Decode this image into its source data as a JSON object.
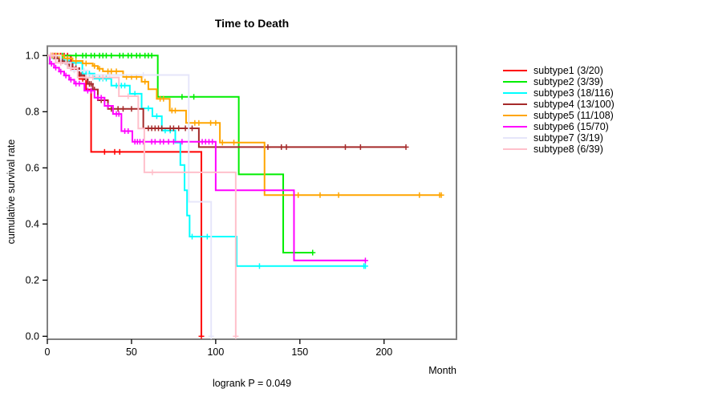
{
  "title": "Time to Death",
  "xlabel": "Month",
  "ylabel": "cumulative survival rate",
  "footnote": "logrank P = 0.049",
  "axis_color": "#808080",
  "text_color": "#000000",
  "chart_data": {
    "type": "line",
    "subtype": "kaplan-meier-step",
    "title": "Time to Death",
    "xlabel": "Month",
    "ylabel": "cumulative survival rate",
    "annotation": "logrank P = 0.049",
    "xlim": [
      0,
      243
    ],
    "ylim": [
      0.0,
      1.0
    ],
    "x_ticks": [
      0,
      50,
      100,
      150,
      200
    ],
    "y_ticks": [
      0.0,
      0.2,
      0.4,
      0.6,
      0.8,
      1.0
    ],
    "grid": false,
    "legend_position": "right-outside",
    "series": [
      {
        "name": "subtype1 (3/20)",
        "color": "#FF0000",
        "points": [
          [
            0,
            1
          ],
          [
            14,
            0.95
          ],
          [
            19,
            0.917
          ],
          [
            23,
            0.879
          ],
          [
            26,
            0.657
          ],
          [
            91.5,
            0
          ]
        ],
        "end": 91.5,
        "censors": [
          [
            2,
            1
          ],
          [
            4,
            1
          ],
          [
            6,
            1
          ],
          [
            8,
            1
          ],
          [
            10,
            1
          ],
          [
            12,
            1
          ],
          [
            16,
            0.95
          ],
          [
            21,
            0.917
          ],
          [
            34,
            0.657
          ],
          [
            40,
            0.657
          ],
          [
            43,
            0.657
          ],
          [
            91.5,
            0
          ]
        ]
      },
      {
        "name": "subtype2 (3/39)",
        "color": "#00EE00",
        "points": [
          [
            0,
            1
          ],
          [
            65.6,
            0.853
          ],
          [
            113.7,
            0.577
          ],
          [
            140.1,
            0.298
          ]
        ],
        "end": 157.6,
        "censors": [
          [
            5,
            1
          ],
          [
            9,
            1
          ],
          [
            17,
            1
          ],
          [
            21,
            1
          ],
          [
            23,
            1
          ],
          [
            26,
            1
          ],
          [
            28,
            1
          ],
          [
            31,
            1
          ],
          [
            33,
            1
          ],
          [
            35,
            1
          ],
          [
            38,
            1
          ],
          [
            43,
            1
          ],
          [
            45,
            1
          ],
          [
            48,
            1
          ],
          [
            50,
            1
          ],
          [
            53,
            1
          ],
          [
            55,
            1
          ],
          [
            58,
            1
          ],
          [
            60,
            1
          ],
          [
            62,
            1
          ],
          [
            80,
            0.853
          ],
          [
            87,
            0.853
          ],
          [
            157.6,
            0.298
          ]
        ]
      },
      {
        "name": "subtype3 (18/116)",
        "color": "#00FFFF",
        "points": [
          [
            0,
            1
          ],
          [
            3,
            0.991
          ],
          [
            8,
            0.983
          ],
          [
            13,
            0.974
          ],
          [
            20.8,
            0.936
          ],
          [
            28,
            0.918
          ],
          [
            38,
            0.893
          ],
          [
            49,
            0.864
          ],
          [
            56,
            0.812
          ],
          [
            62.4,
            0.784
          ],
          [
            68,
            0.733
          ],
          [
            76,
            0.69
          ],
          [
            79,
            0.61
          ],
          [
            81.5,
            0.52
          ],
          [
            83,
            0.43
          ],
          [
            84.5,
            0.355
          ],
          [
            112.4,
            0.25
          ]
        ],
        "end": 188.9,
        "censors": [
          [
            5,
            0.991
          ],
          [
            10,
            0.983
          ],
          [
            15,
            0.974
          ],
          [
            17,
            0.974
          ],
          [
            23,
            0.936
          ],
          [
            25,
            0.936
          ],
          [
            31,
            0.918
          ],
          [
            33,
            0.918
          ],
          [
            35,
            0.918
          ],
          [
            41,
            0.893
          ],
          [
            44,
            0.893
          ],
          [
            46,
            0.893
          ],
          [
            52,
            0.864
          ],
          [
            60,
            0.812
          ],
          [
            65,
            0.784
          ],
          [
            70,
            0.733
          ],
          [
            73,
            0.733
          ],
          [
            86,
            0.355
          ],
          [
            95,
            0.355
          ],
          [
            126,
            0.25
          ],
          [
            188,
            0.25
          ],
          [
            188.9,
            0.25
          ]
        ]
      },
      {
        "name": "subtype4 (13/100)",
        "color": "#A52A2A",
        "points": [
          [
            0,
            1
          ],
          [
            4,
            0.99
          ],
          [
            7,
            0.98
          ],
          [
            11,
            0.97
          ],
          [
            15,
            0.955
          ],
          [
            19,
            0.93
          ],
          [
            22,
            0.915
          ],
          [
            24,
            0.899
          ],
          [
            27,
            0.879
          ],
          [
            30,
            0.841
          ],
          [
            36,
            0.81
          ],
          [
            57,
            0.741
          ],
          [
            90,
            0.674
          ]
        ],
        "end": 213,
        "censors": [
          [
            3,
            1
          ],
          [
            5,
            0.99
          ],
          [
            8,
            0.98
          ],
          [
            9,
            0.98
          ],
          [
            12,
            0.97
          ],
          [
            13,
            0.97
          ],
          [
            17,
            0.955
          ],
          [
            20,
            0.93
          ],
          [
            25,
            0.899
          ],
          [
            26,
            0.899
          ],
          [
            28,
            0.879
          ],
          [
            32,
            0.841
          ],
          [
            34,
            0.841
          ],
          [
            38,
            0.81
          ],
          [
            42,
            0.81
          ],
          [
            45,
            0.81
          ],
          [
            50,
            0.81
          ],
          [
            60,
            0.741
          ],
          [
            62,
            0.741
          ],
          [
            64,
            0.741
          ],
          [
            66,
            0.741
          ],
          [
            68,
            0.741
          ],
          [
            73,
            0.741
          ],
          [
            75,
            0.741
          ],
          [
            78,
            0.741
          ],
          [
            82,
            0.741
          ],
          [
            86,
            0.741
          ],
          [
            131,
            0.674
          ],
          [
            139,
            0.674
          ],
          [
            142,
            0.674
          ],
          [
            177,
            0.674
          ],
          [
            186,
            0.674
          ],
          [
            213,
            0.674
          ]
        ]
      },
      {
        "name": "subtype5 (11/108)",
        "color": "#FFA500",
        "points": [
          [
            0,
            1
          ],
          [
            10,
            0.99
          ],
          [
            15,
            0.981
          ],
          [
            21,
            0.972
          ],
          [
            27,
            0.963
          ],
          [
            30,
            0.953
          ],
          [
            33,
            0.944
          ],
          [
            45,
            0.924
          ],
          [
            56,
            0.907
          ],
          [
            60,
            0.88
          ],
          [
            65,
            0.846
          ],
          [
            72.7,
            0.804
          ],
          [
            82.4,
            0.76
          ],
          [
            102.5,
            0.69
          ],
          [
            129,
            0.503
          ]
        ],
        "end": 234,
        "censors": [
          [
            3,
            1
          ],
          [
            5,
            1
          ],
          [
            7,
            1
          ],
          [
            12,
            0.99
          ],
          [
            17,
            0.981
          ],
          [
            23,
            0.972
          ],
          [
            28,
            0.963
          ],
          [
            31,
            0.953
          ],
          [
            36,
            0.944
          ],
          [
            38,
            0.944
          ],
          [
            41,
            0.944
          ],
          [
            47,
            0.924
          ],
          [
            50,
            0.924
          ],
          [
            53,
            0.924
          ],
          [
            58,
            0.907
          ],
          [
            67,
            0.846
          ],
          [
            69,
            0.846
          ],
          [
            74,
            0.804
          ],
          [
            76,
            0.804
          ],
          [
            87.6,
            0.76
          ],
          [
            90,
            0.76
          ],
          [
            97,
            0.76
          ],
          [
            100,
            0.76
          ],
          [
            104,
            0.69
          ],
          [
            110.8,
            0.69
          ],
          [
            149,
            0.503
          ],
          [
            162,
            0.503
          ],
          [
            173,
            0.503
          ],
          [
            221,
            0.503
          ],
          [
            233,
            0.503
          ],
          [
            234,
            0.503
          ]
        ]
      },
      {
        "name": "subtype6 (15/70)",
        "color": "#FF00FF",
        "points": [
          [
            0,
            1
          ],
          [
            1.5,
            0.971
          ],
          [
            4,
            0.957
          ],
          [
            7,
            0.943
          ],
          [
            10,
            0.929
          ],
          [
            13,
            0.914
          ],
          [
            16,
            0.9
          ],
          [
            22,
            0.875
          ],
          [
            28,
            0.85
          ],
          [
            34,
            0.821
          ],
          [
            39,
            0.792
          ],
          [
            44,
            0.731
          ],
          [
            50.5,
            0.693
          ],
          [
            100,
            0.52
          ],
          [
            146.5,
            0.27
          ]
        ],
        "end": 188.9,
        "censors": [
          [
            2.5,
            0.971
          ],
          [
            5,
            0.957
          ],
          [
            8,
            0.943
          ],
          [
            11,
            0.929
          ],
          [
            14,
            0.914
          ],
          [
            17,
            0.9
          ],
          [
            19,
            0.9
          ],
          [
            24,
            0.875
          ],
          [
            26,
            0.875
          ],
          [
            30,
            0.85
          ],
          [
            32,
            0.85
          ],
          [
            36,
            0.821
          ],
          [
            41,
            0.792
          ],
          [
            42.5,
            0.792
          ],
          [
            46,
            0.731
          ],
          [
            48,
            0.731
          ],
          [
            52,
            0.693
          ],
          [
            53.5,
            0.693
          ],
          [
            55,
            0.693
          ],
          [
            57,
            0.693
          ],
          [
            62,
            0.693
          ],
          [
            64,
            0.693
          ],
          [
            67,
            0.693
          ],
          [
            69,
            0.693
          ],
          [
            72,
            0.693
          ],
          [
            75,
            0.693
          ],
          [
            80,
            0.693
          ],
          [
            92,
            0.693
          ],
          [
            94,
            0.693
          ],
          [
            96,
            0.693
          ],
          [
            98,
            0.693
          ],
          [
            188.9,
            0.27
          ]
        ]
      },
      {
        "name": "subtype7 (3/19)",
        "color": "#E6E6FA",
        "points": [
          [
            0,
            1
          ],
          [
            8,
            0.974
          ],
          [
            14,
            0.947
          ],
          [
            24,
            0.931
          ],
          [
            84,
            0.479
          ],
          [
            97.3,
            0
          ]
        ],
        "end": 97.3,
        "censors": [
          [
            11,
            0.974
          ],
          [
            16,
            0.947
          ],
          [
            22,
            0.947
          ],
          [
            37,
            0.931
          ],
          [
            57,
            0.931
          ],
          [
            97.3,
            0
          ]
        ]
      },
      {
        "name": "subtype8 (6/39)",
        "color": "#FFC0CB",
        "points": [
          [
            0,
            1
          ],
          [
            5,
            0.974
          ],
          [
            12,
            0.955
          ],
          [
            18,
            0.922
          ],
          [
            42.5,
            0.855
          ],
          [
            54,
            0.74
          ],
          [
            57.6,
            0.584
          ],
          [
            111.9,
            0
          ]
        ],
        "end": 111.9,
        "censors": [
          [
            2,
            1
          ],
          [
            3.5,
            1
          ],
          [
            8,
            0.974
          ],
          [
            14,
            0.955
          ],
          [
            23,
            0.922
          ],
          [
            27,
            0.922
          ],
          [
            33,
            0.922
          ],
          [
            48,
            0.855
          ],
          [
            62.4,
            0.584
          ],
          [
            111.9,
            0
          ]
        ]
      }
    ]
  }
}
